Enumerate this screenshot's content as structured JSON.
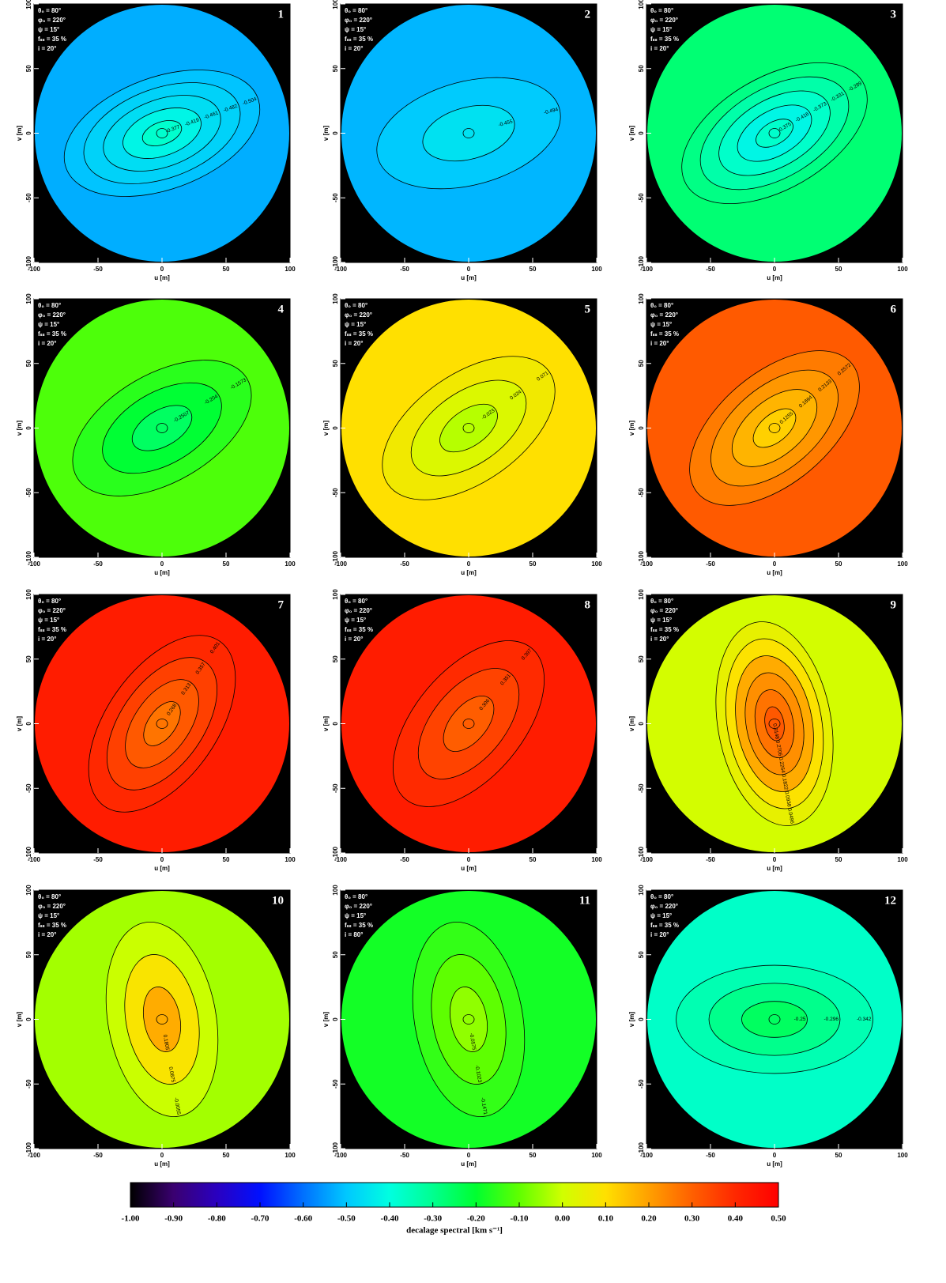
{
  "chart_data": [
    {
      "type": "contour",
      "panel": "1",
      "params": [
        "θ₀ = 80°",
        "φ₀ = 220°",
        "ψ = 15°",
        "fₛₛ = 35 %",
        "i = 20°"
      ],
      "background_value": -0.53,
      "contours": [
        -0.504,
        -0.482,
        -0.461,
        -0.419,
        -0.377
      ],
      "xlabel": "u [m]",
      "ylabel": "v [m]",
      "xlim": [
        -100,
        100
      ],
      "ylim": [
        -100,
        100
      ],
      "xticks": [
        -100,
        -50,
        0,
        50,
        100
      ],
      "yticks": [
        -100,
        -50,
        0,
        50,
        100
      ]
    },
    {
      "type": "contour",
      "panel": "2",
      "params": [
        "θ₀ = 80°",
        "φ₀ = 220°",
        "ψ = 15°",
        "fₛₛ = 35 %",
        "i = 20°"
      ],
      "background_value": -0.52,
      "contours": [
        -0.494,
        -0.455
      ],
      "xlabel": "u [m]",
      "ylabel": "v [m]",
      "xlim": [
        -100,
        100
      ],
      "ylim": [
        -100,
        100
      ],
      "xticks": [
        -100,
        -50,
        0,
        50,
        100
      ],
      "yticks": [
        -100,
        -50,
        0,
        50,
        100
      ]
    },
    {
      "type": "contour",
      "panel": "3",
      "params": [
        "θ₀ = 80°",
        "φ₀ = 220°",
        "ψ = 15°",
        "fₛₛ = 35 %",
        "i = 20°"
      ],
      "background_value": -0.27,
      "contours": [
        -0.289,
        -0.331,
        -0.373,
        -0.416,
        -0.375
      ],
      "xlabel": "u [m]",
      "ylabel": "v [m]",
      "xlim": [
        -100,
        100
      ],
      "ylim": [
        -100,
        100
      ],
      "xticks": [
        -100,
        -50,
        0,
        50,
        100
      ],
      "yticks": [
        -100,
        -50,
        0,
        50,
        100
      ]
    },
    {
      "type": "contour",
      "panel": "4",
      "params": [
        "θ₀ = 80°",
        "φ₀ = 220°",
        "ψ = 15°",
        "fₛₛ = 35 %",
        "i = 20°"
      ],
      "background_value": -0.12,
      "contours": [
        -0.1573,
        -0.204,
        -0.2507
      ],
      "xlabel": "u [m]",
      "ylabel": "v [m]",
      "xlim": [
        -100,
        100
      ],
      "ylim": [
        -100,
        100
      ],
      "xticks": [
        -100,
        -50,
        0,
        50,
        100
      ],
      "yticks": [
        -100,
        -50,
        0,
        50,
        100
      ]
    },
    {
      "type": "contour",
      "panel": "5",
      "params": [
        "θ₀ = 80°",
        "φ₀ = 220°",
        "ψ = 15°",
        "fₛₛ = 35 %",
        "i = 20°"
      ],
      "background_value": 0.1,
      "contours": [
        0.071,
        0.024,
        -0.023
      ],
      "xlabel": "u [m]",
      "ylabel": "v [m]",
      "xlim": [
        -100,
        100
      ],
      "ylim": [
        -100,
        100
      ],
      "xticks": [
        -100,
        -50,
        0,
        50,
        100
      ],
      "yticks": [
        -100,
        -50,
        0,
        50,
        100
      ]
    },
    {
      "type": "contour",
      "panel": "6",
      "params": [
        "θ₀ = 80°",
        "φ₀ = 220°",
        "ψ = 15°",
        "fₛₛ = 35 %",
        "i = 20°"
      ],
      "background_value": 0.31,
      "contours": [
        0.2572,
        0.2133,
        0.1694,
        0.1255
      ],
      "xlabel": "u [m]",
      "ylabel": "v [m]",
      "xlim": [
        -100,
        100
      ],
      "ylim": [
        -100,
        100
      ],
      "xticks": [
        -100,
        -50,
        0,
        50,
        100
      ],
      "yticks": [
        -100,
        -50,
        0,
        50,
        100
      ]
    },
    {
      "type": "contour",
      "panel": "7",
      "params": [
        "θ₀ = 80°",
        "φ₀ = 220°",
        "ψ = 15°",
        "fₛₛ = 35 %",
        "i = 20°"
      ],
      "background_value": 0.43,
      "contours": [
        0.401,
        0.357,
        0.313,
        0.268
      ],
      "xlabel": "u [m]",
      "ylabel": "v [m]",
      "xlim": [
        -100,
        100
      ],
      "ylim": [
        -100,
        100
      ],
      "xticks": [
        -100,
        -50,
        0,
        50,
        100
      ],
      "yticks": [
        -100,
        -50,
        0,
        50,
        100
      ]
    },
    {
      "type": "contour",
      "panel": "8",
      "params": [
        "θ₀ = 80°",
        "φ₀ = 220°",
        "ψ = 15°",
        "fₛₛ = 35 %",
        "i = 20°"
      ],
      "background_value": 0.43,
      "contours": [
        0.397,
        0.351,
        0.306
      ],
      "xlabel": "u [m]",
      "ylabel": "v [m]",
      "xlim": [
        -100,
        100
      ],
      "ylim": [
        -100,
        100
      ],
      "xticks": [
        -100,
        -50,
        0,
        50,
        100
      ],
      "yticks": [
        -100,
        -50,
        0,
        50,
        100
      ]
    },
    {
      "type": "contour",
      "panel": "9",
      "params": [
        "θ₀ = 80°",
        "φ₀ = 220°",
        "ψ = 15°",
        "fₛₛ = 35 %",
        "i = 20°"
      ],
      "background_value": 0.0054,
      "contours": [
        0.0496,
        0.0938,
        0.1822,
        0.2264,
        0.2706,
        0.3148
      ],
      "xlabel": "u [m]",
      "ylabel": "v [m]",
      "xlim": [
        -100,
        100
      ],
      "ylim": [
        -100,
        100
      ],
      "xticks": [
        -100,
        -50,
        0,
        50,
        100
      ],
      "yticks": [
        -100,
        -50,
        0,
        50,
        100
      ]
    },
    {
      "type": "contour",
      "panel": "10",
      "params": [
        "θ₀ = 80°",
        "φ₀ = 220°",
        "ψ = 15°",
        "fₛₛ = 35 %",
        "i = 20°"
      ],
      "background_value": -0.04,
      "contours": [
        -0.0055,
        0.0875,
        0.1805
      ],
      "xlabel": "u [m]",
      "ylabel": "v [m]",
      "xlim": [
        -100,
        100
      ],
      "ylim": [
        -100,
        100
      ],
      "xticks": [
        -100,
        -50,
        0,
        50,
        100
      ],
      "yticks": [
        -100,
        -50,
        0,
        50,
        100
      ]
    },
    {
      "type": "contour",
      "panel": "11",
      "params": [
        "θ₀ = 80°",
        "φ₀ = 220°",
        "ψ = 15°",
        "fₛₛ = 35 %",
        "i = 80°"
      ],
      "background_value": -0.18,
      "contours": [
        -0.1471,
        -0.1023,
        -0.0575
      ],
      "xlabel": "u [m]",
      "ylabel": "v [m]",
      "xlim": [
        -100,
        100
      ],
      "ylim": [
        -100,
        100
      ],
      "xticks": [
        -100,
        -50,
        0,
        50,
        100
      ],
      "yticks": [
        -100,
        -50,
        0,
        50,
        100
      ]
    },
    {
      "type": "contour",
      "panel": "12",
      "params": [
        "θ₀ = 80°",
        "φ₀ = 220°",
        "ψ = 15°",
        "fₛₛ = 35 %",
        "i = 20°"
      ],
      "background_value": -0.37,
      "contours": [
        -0.342,
        -0.296,
        -0.25
      ],
      "xlabel": "u [m]",
      "ylabel": "v [m]",
      "xlim": [
        -100,
        100
      ],
      "ylim": [
        -100,
        100
      ],
      "xticks": [
        -100,
        -50,
        0,
        50,
        100
      ],
      "yticks": [
        -100,
        -50,
        0,
        50,
        100
      ]
    },
    {
      "type": "colorbar",
      "label": "decalage spectral [km s⁻¹]",
      "xlim": [
        -1,
        0.5
      ],
      "colors": [
        "#000000",
        "#3a0070",
        "#2a00c0",
        "#0010ff",
        "#0070ff",
        "#00c8ff",
        "#00ffe0",
        "#00ff90",
        "#00ff30",
        "#60ff00",
        "#d0ff00",
        "#ffe000",
        "#ffa000",
        "#ff6000",
        "#ff2800",
        "#ff0000"
      ],
      "xticks": [
        {
          "value": -1,
          "label": "-1.00"
        },
        {
          "value": -0.9,
          "label": "-0.90"
        },
        {
          "value": -0.8,
          "label": "-0.80"
        },
        {
          "value": -0.7,
          "label": "-0.70"
        },
        {
          "value": -0.6,
          "label": "-0.60"
        },
        {
          "value": -0.5,
          "label": "-0.50"
        },
        {
          "value": -0.4,
          "label": "-0.40"
        },
        {
          "value": -0.3,
          "label": "-0.30"
        },
        {
          "value": -0.2,
          "label": "-0.20"
        },
        {
          "value": -0.1,
          "label": "-0.10"
        },
        {
          "value": 0,
          "label": "0.00"
        },
        {
          "value": 0.1,
          "label": "0.10"
        },
        {
          "value": 0.2,
          "label": "0.20"
        },
        {
          "value": 0.3,
          "label": "0.30"
        },
        {
          "value": 0.4,
          "label": "0.40"
        },
        {
          "value": 0.5,
          "label": "0.50"
        }
      ]
    }
  ]
}
